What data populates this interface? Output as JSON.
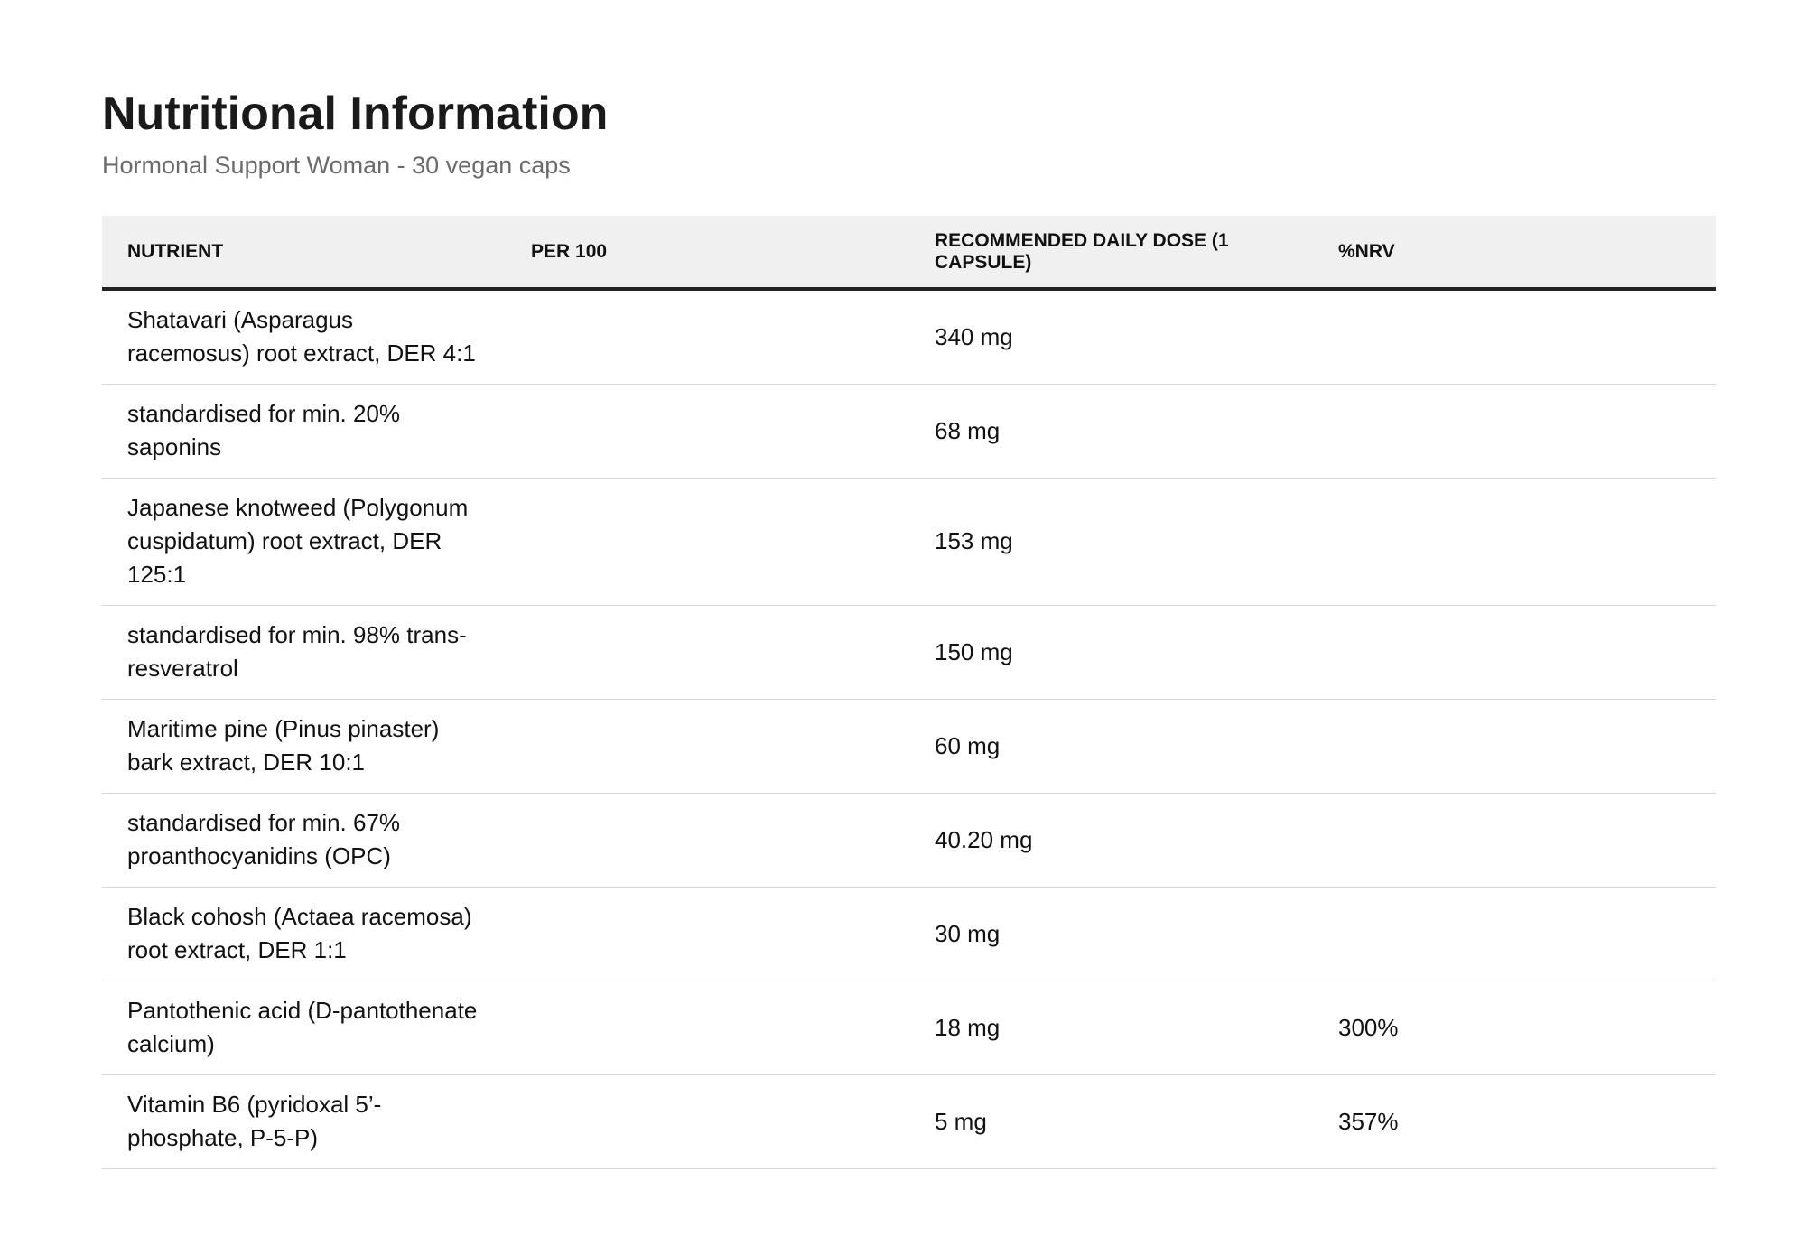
{
  "header": {
    "title": "Nutritional Information",
    "subtitle": "Hormonal Support Woman - 30 vegan caps"
  },
  "table": {
    "columns": [
      "NUTRIENT",
      "PER 100",
      "RECOMMENDED DAILY DOSE (1 CAPSULE)",
      "%NRV"
    ],
    "rows": [
      {
        "nutrient": "Shatavari (Asparagus racemosus) root extract, DER 4:1",
        "per100": "",
        "dose": "340 mg",
        "nrv": ""
      },
      {
        "nutrient": "standardised for min. 20% saponins",
        "per100": "",
        "dose": "68 mg",
        "nrv": ""
      },
      {
        "nutrient": "Japanese knotweed (Polygonum cuspidatum) root extract, DER 125:1",
        "per100": "",
        "dose": "153 mg",
        "nrv": ""
      },
      {
        "nutrient": "standardised for min. 98% trans-resveratrol",
        "per100": "",
        "dose": "150 mg",
        "nrv": ""
      },
      {
        "nutrient": "Maritime pine (Pinus pinaster) bark extract, DER 10:1",
        "per100": "",
        "dose": "60 mg",
        "nrv": ""
      },
      {
        "nutrient": "standardised for min. 67% proanthocyanidins (OPC)",
        "per100": "",
        "dose": "40.20 mg",
        "nrv": ""
      },
      {
        "nutrient": "Black cohosh (Actaea racemosa) root extract, DER 1:1",
        "per100": "",
        "dose": "30 mg",
        "nrv": ""
      },
      {
        "nutrient": "Pantothenic acid (D-pantothenate calcium)",
        "per100": "",
        "dose": "18 mg",
        "nrv": "300%"
      },
      {
        "nutrient": "Vitamin B6 (pyridoxal 5’-phosphate, P-5-P)",
        "per100": "",
        "dose": "5 mg",
        "nrv": "357%"
      }
    ]
  }
}
